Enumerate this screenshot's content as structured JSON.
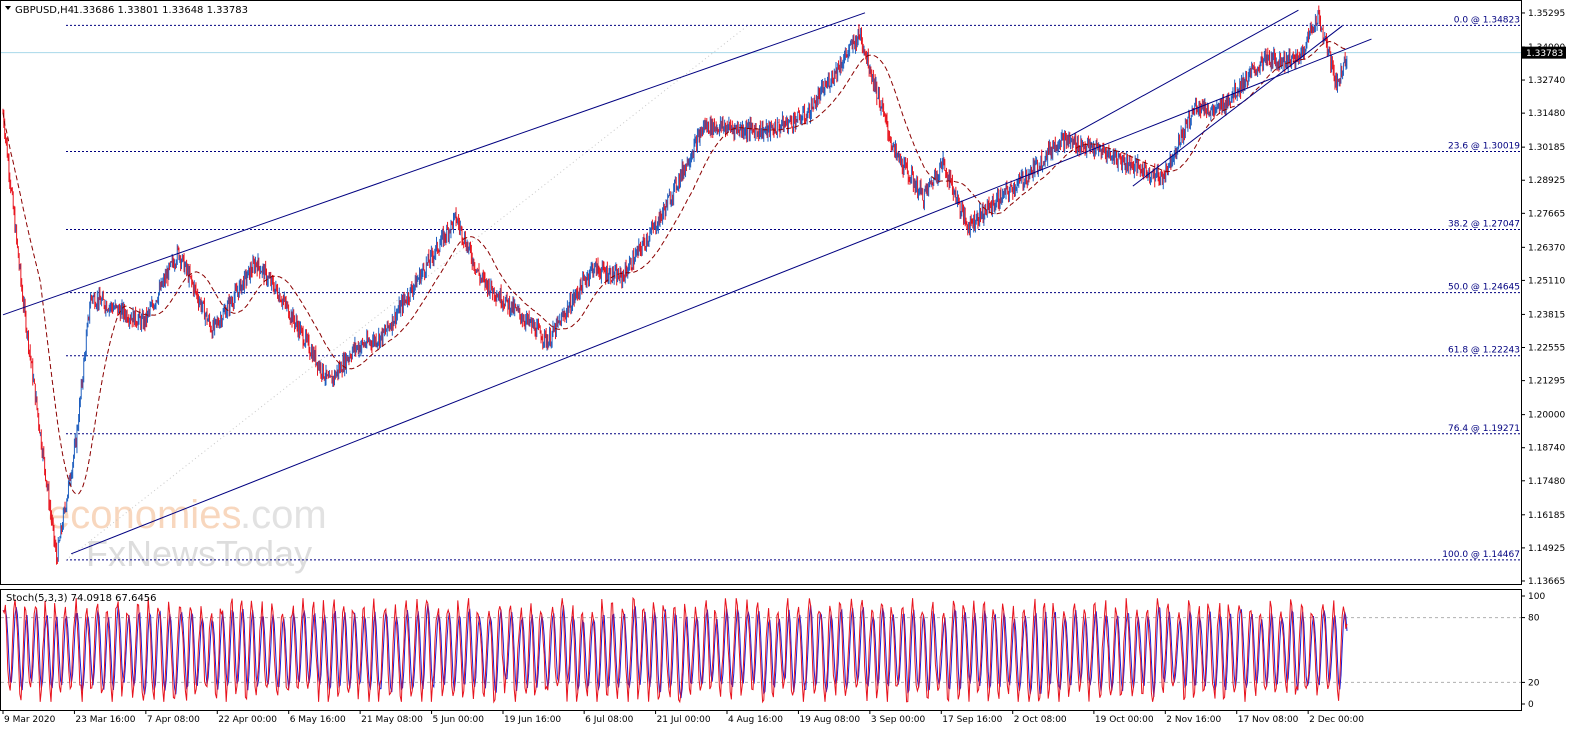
{
  "header": {
    "symbol": "GBPUSD,H4",
    "ohlc": "1.33686 1.33801 1.33648 1.33783"
  },
  "current_price_label": "1.33783",
  "watermark": {
    "line1_a": "economies",
    "line1_b": ".com",
    "line2": "FxNewsToday"
  },
  "colors": {
    "bull": "#1f5fbf",
    "bear": "#e8141e",
    "lines": "#000080",
    "ma": "#8b0000",
    "stoch_main": "#e8141e",
    "stoch_signal": "#1c1cd4",
    "price_line": "#a8d8ea"
  },
  "chart_data": [
    {
      "type": "candlestick",
      "title": "",
      "symbol": "GBPUSD",
      "timeframe": "H4",
      "ylim": [
        1.1355,
        1.3575
      ],
      "y_ticks": [
        "1.35295",
        "1.34000",
        "1.32740",
        "1.31480",
        "1.30185",
        "1.28925",
        "1.27665",
        "1.26370",
        "1.25110",
        "1.23815",
        "1.22555",
        "1.21295",
        "1.20000",
        "1.18740",
        "1.17480",
        "1.16185",
        "1.14925",
        "1.13665"
      ],
      "x_ticks": [
        "9 Mar 2020",
        "23 Mar 16:00",
        "7 Apr 08:00",
        "22 Apr 00:00",
        "6 May 16:00",
        "21 May 08:00",
        "5 Jun 00:00",
        "19 Jun 16:00",
        "6 Jul 08:00",
        "21 Jul 00:00",
        "4 Aug 16:00",
        "19 Aug 08:00",
        "3 Sep 00:00",
        "17 Sep 16:00",
        "2 Oct 08:00",
        "19 Oct 00:00",
        "2 Nov 16:00",
        "17 Nov 08:00",
        "2 Dec 00:00"
      ],
      "price_path": [
        [
          "9 Mar 2020",
          1.315
        ],
        [
          "13 Mar 2020",
          1.245
        ],
        [
          "20 Mar 2020",
          1.145
        ],
        [
          "24 Mar 2020",
          1.19
        ],
        [
          "27 Mar 2020",
          1.245
        ],
        [
          "7 Apr 2020",
          1.235
        ],
        [
          "14 Apr 2020",
          1.262
        ],
        [
          "21 Apr 2020",
          1.232
        ],
        [
          "30 Apr 2020",
          1.258
        ],
        [
          "5 May 2020",
          1.245
        ],
        [
          "15 May 2020",
          1.212
        ],
        [
          "20 May 2020",
          1.225
        ],
        [
          "26 May 2020",
          1.23
        ],
        [
          "10 Jun 2020",
          1.275
        ],
        [
          "15 Jun 2020",
          1.252
        ],
        [
          "29 Jun 2020",
          1.228
        ],
        [
          "8 Jul 2020",
          1.256
        ],
        [
          "14 Jul 2020",
          1.252
        ],
        [
          "22 Jul 2020",
          1.275
        ],
        [
          "31 Jul 2020",
          1.31
        ],
        [
          "13 Aug 2020",
          1.308
        ],
        [
          "21 Aug 2020",
          1.314
        ],
        [
          "1 Sep 2020",
          1.345
        ],
        [
          "8 Sep 2020",
          1.3
        ],
        [
          "14 Sep 2020",
          1.283
        ],
        [
          "18 Sep 2020",
          1.296
        ],
        [
          "23 Sep 2020",
          1.272
        ],
        [
          "6 Oct 2020",
          1.292
        ],
        [
          "12 Oct 2020",
          1.305
        ],
        [
          "21 Oct 2020",
          1.3
        ],
        [
          "2 Nov 2020",
          1.29
        ],
        [
          "9 Nov 2020",
          1.318
        ],
        [
          "13 Nov 2020",
          1.315
        ],
        [
          "23 Nov 2020",
          1.335
        ],
        [
          "30 Nov 2020",
          1.335
        ],
        [
          "4 Dec 2020",
          1.352
        ],
        [
          "8 Dec 2020",
          1.325
        ],
        [
          "10 Dec 2020",
          1.338
        ]
      ],
      "fibonacci": [
        {
          "label": "0.0 @ 1.34823",
          "value": 1.34823
        },
        {
          "label": "23.6 @ 1.30019",
          "value": 1.30019
        },
        {
          "label": "38.2 @ 1.27047",
          "value": 1.27047
        },
        {
          "label": "50.0 @ 1.24645",
          "value": 1.24645
        },
        {
          "label": "61.8 @ 1.22243",
          "value": 1.22243
        },
        {
          "label": "76.4 @ 1.19271",
          "value": 1.19271
        },
        {
          "label": "100.0 @ 1.14467",
          "value": 1.14467
        }
      ],
      "current_price": 1.33783,
      "moving_average": "dashed",
      "trendlines": [
        {
          "name": "upper-channel",
          "from": [
            "9 Mar 2020",
            1.238
          ],
          "to": [
            "2 Sep 2020",
            1.353
          ]
        },
        {
          "name": "lower-channel",
          "from": [
            "23 Mar 2020",
            1.147
          ],
          "to": [
            "15 Dec 2020",
            1.343
          ]
        },
        {
          "name": "minor-channel-upper",
          "from": [
            "14 Oct 2020",
            1.306
          ],
          "to": [
            "30 Nov 2020",
            1.354
          ]
        },
        {
          "name": "minor-channel-lower",
          "from": [
            "27 Oct 2020",
            1.287
          ],
          "to": [
            "9 Dec 2020",
            1.348
          ]
        }
      ],
      "grid": false
    },
    {
      "type": "line",
      "title": "Stoch(5,3,3) 74.0918 67.6456",
      "ylim": [
        0,
        100
      ],
      "y_ticks": [
        "100",
        "80",
        "20",
        "0"
      ],
      "levels": [
        80,
        20
      ],
      "series": [
        {
          "name": "Stoch(5,3,3)",
          "last": 74.0918
        },
        {
          "name": "signal",
          "last": 67.6456
        }
      ]
    }
  ]
}
